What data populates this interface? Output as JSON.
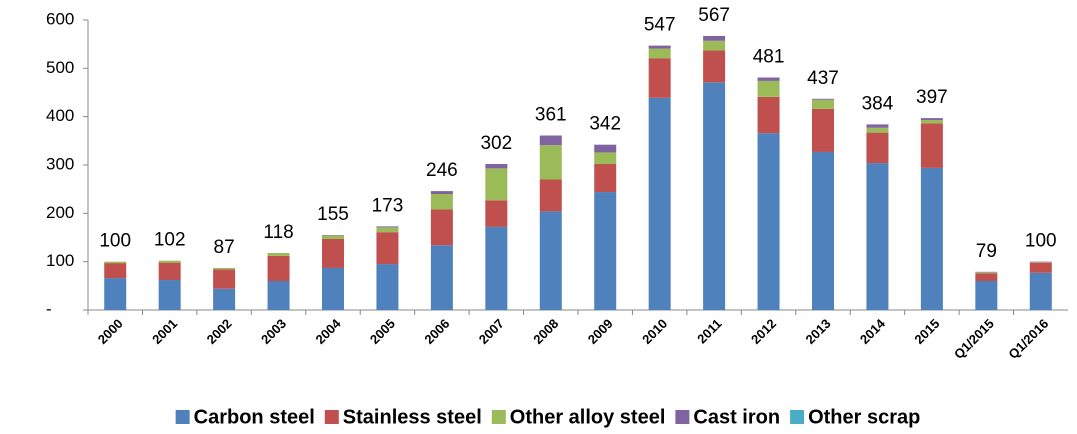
{
  "chart_data": {
    "type": "stacked_bar",
    "categories": [
      "2000",
      "2001",
      "2002",
      "2003",
      "2004",
      "2005",
      "2006",
      "2007",
      "2008",
      "2009",
      "2010",
      "2011",
      "2012",
      "2013",
      "2014",
      "2015",
      "Q1/2015",
      "Q1/2016"
    ],
    "series": [
      {
        "name": "Carbon steel",
        "color": "#4f81bd",
        "values": [
          66,
          62,
          44,
          60,
          87,
          95,
          134,
          172,
          204,
          244,
          439,
          471,
          366,
          327,
          304,
          294,
          60,
          77
        ]
      },
      {
        "name": "Stainless steel",
        "color": "#c0504d",
        "values": [
          31,
          36,
          40,
          52,
          60,
          66,
          74,
          55,
          66,
          58,
          82,
          66,
          75,
          89,
          63,
          92,
          16,
          21
        ]
      },
      {
        "name": "Other alloy steel",
        "color": "#9bbb59",
        "values": [
          3,
          4,
          3,
          6,
          7,
          10,
          32,
          66,
          71,
          24,
          20,
          20,
          33,
          19,
          10,
          7,
          2,
          1
        ]
      },
      {
        "name": "Cast iron",
        "color": "#8064a2",
        "values": [
          0,
          0,
          0,
          0,
          1,
          2,
          6,
          9,
          20,
          16,
          6,
          10,
          7,
          2,
          7,
          4,
          1,
          1
        ]
      },
      {
        "name": "Other scrap",
        "color": "#4bacc6",
        "values": [
          0,
          0,
          0,
          0,
          0,
          0,
          0,
          0,
          0,
          0,
          0,
          0,
          0,
          0,
          0,
          0,
          0,
          0
        ]
      }
    ],
    "totals": [
      100,
      102,
      87,
      118,
      155,
      173,
      246,
      302,
      361,
      342,
      547,
      567,
      481,
      437,
      384,
      397,
      79,
      100
    ],
    "ylim": [
      0,
      600
    ],
    "yticks": [
      {
        "value": 0,
        "label": "-"
      },
      100,
      200,
      300,
      400,
      500,
      600
    ],
    "legend": "bottom"
  }
}
